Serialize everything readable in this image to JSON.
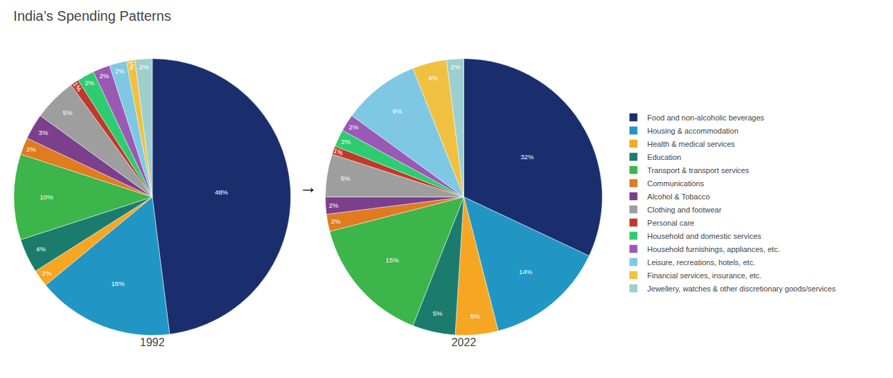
{
  "chart_data": {
    "type": "pie",
    "title": "India’s Spending Patterns",
    "categories": [
      "Food and non-alcoholic beverages",
      "Housing & accommodation",
      "Health & medical services",
      "Education",
      "Transport & transport services",
      "Communications",
      "Alcohol & Tobacco",
      "Clothing and footwear",
      "Personal care",
      "Household and domestic services",
      "Household furnishings, appliances, etc.",
      "Leisure, recreations, hotels, etc.",
      "Financial services, insurance, etc.",
      "Jewellery, watches & other discretionary goods/services"
    ],
    "colors": [
      "#1a2e6e",
      "#2196c4",
      "#f5a623",
      "#1b7c6e",
      "#3cb54a",
      "#e07b20",
      "#7b3f8c",
      "#9e9e9e",
      "#c0392b",
      "#2ecc71",
      "#9b59b6",
      "#7ec8e3",
      "#f0c040",
      "#9ecfcf"
    ],
    "series": [
      {
        "name": "1992",
        "values": [
          48,
          16,
          2,
          4,
          10,
          2,
          3,
          5,
          1,
          2,
          2,
          2,
          1,
          2
        ],
        "value_labels": [
          "48%",
          "16%",
          "2%",
          "4%",
          "10%",
          "2%",
          "3%",
          "5%",
          "1%",
          "2%",
          "2%",
          "2%",
          "1%",
          "2%"
        ]
      },
      {
        "name": "2022",
        "values": [
          32,
          14,
          5,
          5,
          15,
          2,
          2,
          5,
          1,
          2,
          2,
          9,
          4,
          2
        ],
        "value_labels": [
          "32%",
          "14%",
          "5%",
          "5%",
          "15%",
          "2%",
          "2%",
          "5%",
          "1%",
          "2%",
          "2%",
          "9%",
          "4%",
          "2%"
        ]
      }
    ],
    "data_labels": true,
    "legend": "right",
    "annotations": [
      "→"
    ]
  }
}
